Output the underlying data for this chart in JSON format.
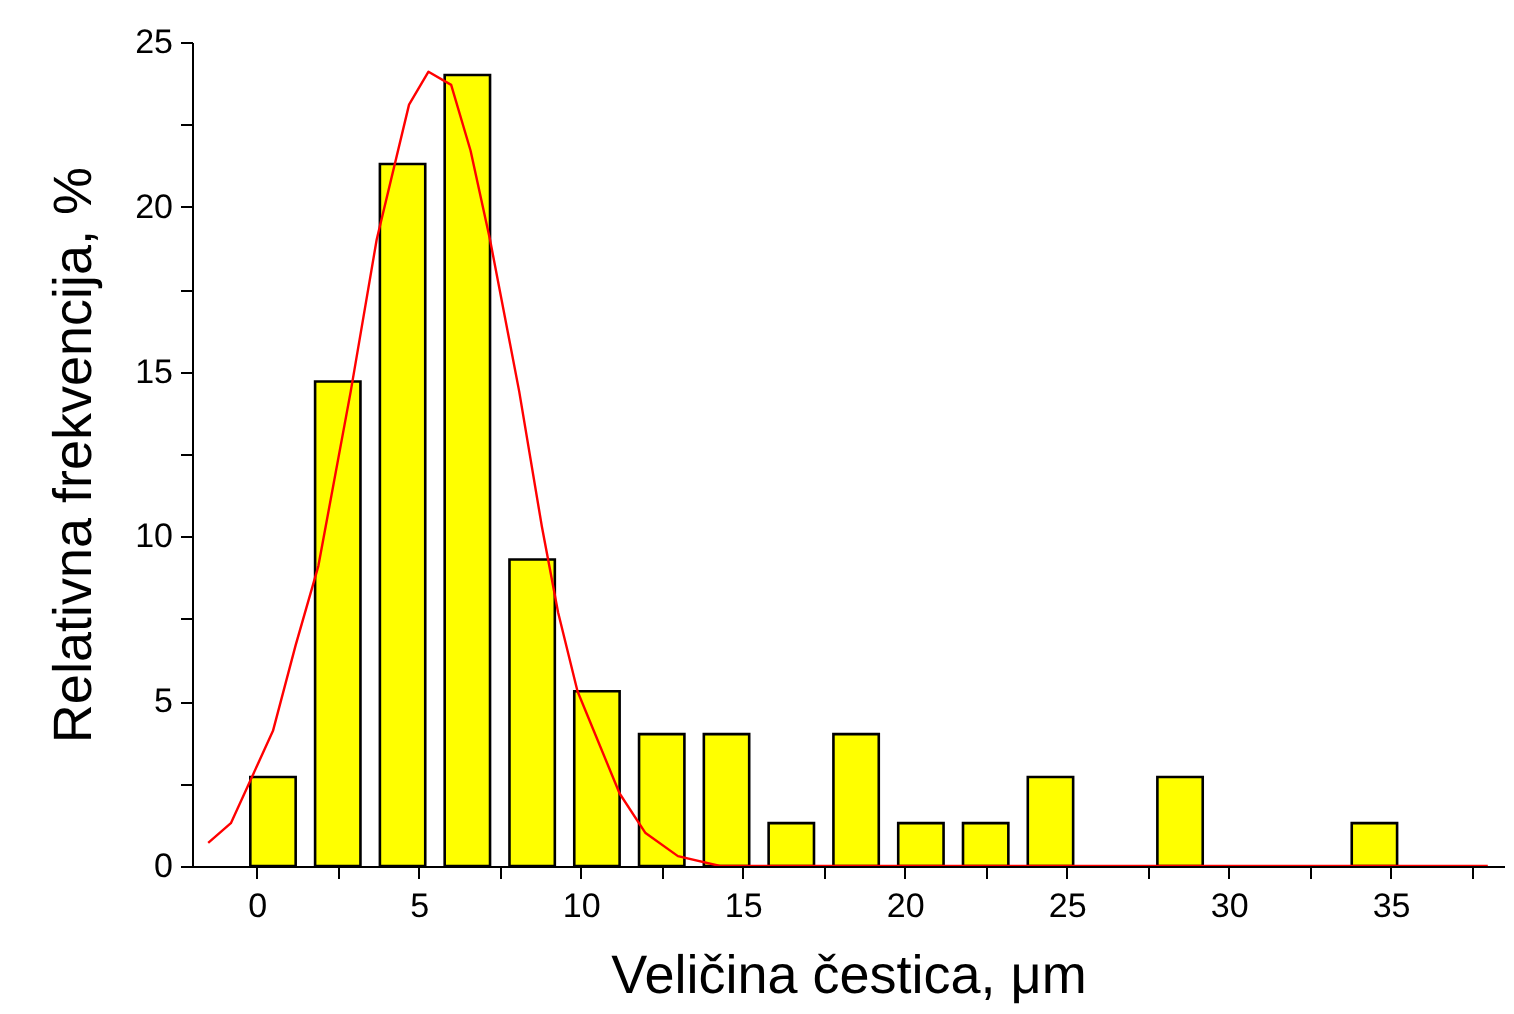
{
  "chart_data": {
    "type": "histogram",
    "xlabel": "Veličina čestica, μm",
    "ylabel": "Relativna frekvencija, %",
    "bins": [
      -0.5,
      1.5,
      3.5,
      5.5,
      7.5,
      9.5,
      11.5,
      13.5,
      15.5,
      17.5,
      19.5,
      21.5,
      23.5,
      25.5,
      27.5,
      29.5,
      31.5,
      33.5,
      35.5
    ],
    "series": [
      {
        "color": "#ffff00",
        "values": [
          2.7,
          14.7,
          21.3,
          24,
          9.3,
          5.3,
          4,
          4,
          1.3,
          4,
          1.3,
          1.3,
          2.7,
          0,
          2.7,
          0,
          0,
          1.3
        ]
      },
      {
        "type": "line",
        "color": "#ff0000",
        "x": [
          -1.5,
          -0.8,
          0.5,
          1.2,
          1.9,
          2.9,
          3.7,
          4.7,
          5.3,
          6.0,
          6.6,
          7.2,
          8.1,
          8.8,
          9.3,
          9.9,
          11.2,
          12.0,
          13.0,
          14.3,
          38
        ],
        "values": [
          0.7,
          1.3,
          4.1,
          6.7,
          9.1,
          14.4,
          19.0,
          23.1,
          24.1,
          23.7,
          21.7,
          19.0,
          14.4,
          10.3,
          7.7,
          5.3,
          2.2,
          1.0,
          0.3,
          0,
          0
        ]
      }
    ],
    "xlim": [
      -2,
      38.5
    ],
    "xticks": [
      0,
      {
        "value": 2.5,
        "label": null
      },
      5,
      {
        "value": 7.5,
        "label": null
      },
      10,
      {
        "value": 12.5,
        "label": null
      },
      15,
      {
        "value": 17.5,
        "label": null
      },
      20,
      {
        "value": 22.5,
        "label": null
      },
      25,
      {
        "value": 27.5,
        "label": null
      },
      30,
      {
        "value": 32.5,
        "label": null
      },
      35,
      {
        "value": 37.5,
        "label": null
      }
    ],
    "ylim": [
      0,
      25
    ],
    "yticks": [
      0,
      {
        "value": 2.5,
        "label": null
      },
      5,
      {
        "value": 7.5,
        "label": null
      },
      10,
      {
        "value": 12.5,
        "label": null
      },
      15,
      {
        "value": 17.5,
        "label": null
      },
      20,
      {
        "value": 22.5,
        "label": null
      },
      25
    ]
  }
}
